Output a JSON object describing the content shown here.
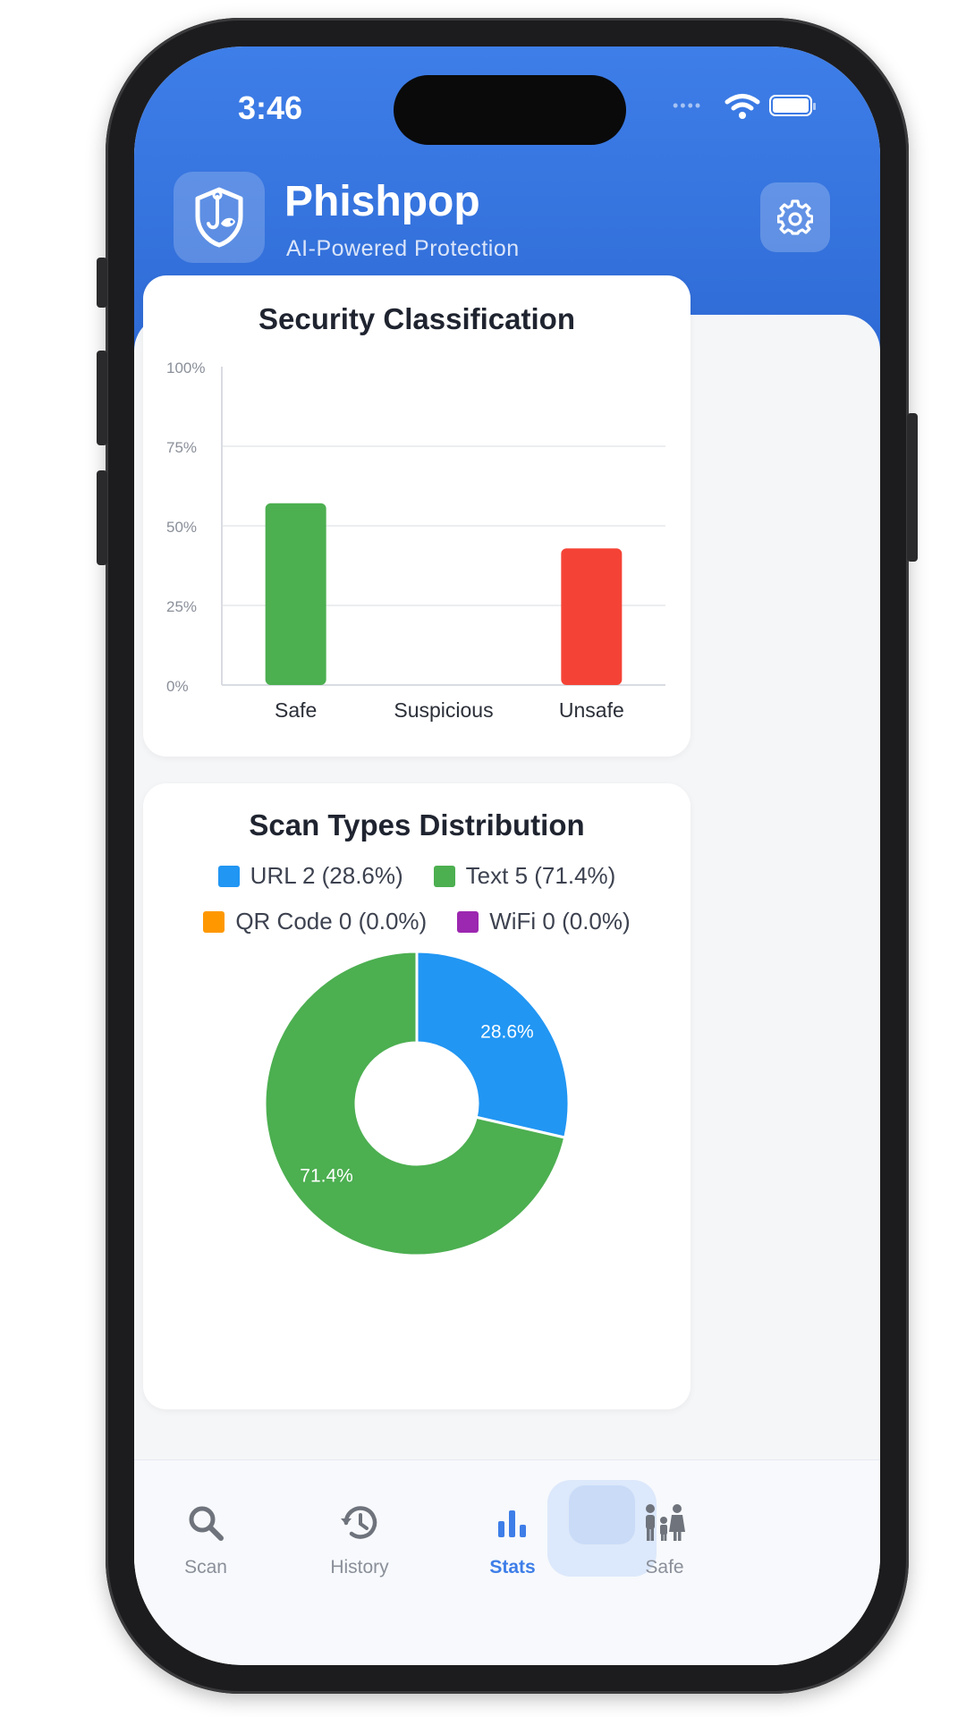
{
  "status_bar": {
    "time": "3:46"
  },
  "header": {
    "app_name": "Phishpop",
    "tagline": "AI-Powered Protection",
    "logo_icon": "shield-hook-fish-icon",
    "settings_icon": "gear-icon"
  },
  "bar_card": {
    "title": "Security Classification"
  },
  "pie_card": {
    "title": "Scan Types Distribution",
    "legend": [
      {
        "label": "URL 2 (28.6%)",
        "color": "#2196F3"
      },
      {
        "label": "Text 5 (71.4%)",
        "color": "#4CAF50"
      },
      {
        "label": "QR Code 0 (0.0%)",
        "color": "#FF9800"
      },
      {
        "label": "WiFi 0 (0.0%)",
        "color": "#9C27B0"
      }
    ]
  },
  "chart_data": [
    {
      "type": "bar",
      "title": "Security Classification",
      "categories": [
        "Safe",
        "Suspicious",
        "Unsafe"
      ],
      "values": [
        57.1,
        0,
        42.9
      ],
      "colors": [
        "#4CAF50",
        "#FFC107",
        "#F44336"
      ],
      "ylim": [
        0,
        100
      ],
      "yticks": [
        "0%",
        "25%",
        "50%",
        "75%",
        "100%"
      ],
      "grid": true
    },
    {
      "type": "pie",
      "title": "Scan Types Distribution",
      "donut": true,
      "slices": [
        {
          "name": "URL",
          "value": 28.6,
          "count": 2,
          "color": "#2196F3",
          "label": "28.6%"
        },
        {
          "name": "Text",
          "value": 71.4,
          "count": 5,
          "color": "#4CAF50",
          "label": "71.4%"
        },
        {
          "name": "QR Code",
          "value": 0.0,
          "count": 0,
          "color": "#FF9800",
          "label": ""
        },
        {
          "name": "WiFi",
          "value": 0.0,
          "count": 0,
          "color": "#9C27B0",
          "label": ""
        }
      ]
    }
  ],
  "nav": {
    "items": [
      {
        "label": "Scan",
        "icon": "search-icon"
      },
      {
        "label": "History",
        "icon": "history-icon"
      },
      {
        "label": "Stats",
        "icon": "bar-chart-icon"
      },
      {
        "label": "Safe",
        "icon": "family-icon"
      }
    ],
    "active": "Stats",
    "active_color": "#3e7ee8"
  }
}
